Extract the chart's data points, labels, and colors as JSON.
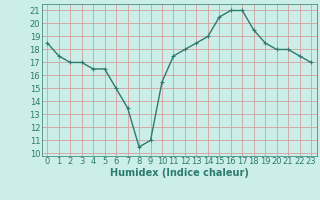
{
  "x": [
    0,
    1,
    2,
    3,
    4,
    5,
    6,
    7,
    8,
    9,
    10,
    11,
    12,
    13,
    14,
    15,
    16,
    17,
    18,
    19,
    20,
    21,
    22,
    23
  ],
  "y": [
    18.5,
    17.5,
    17.0,
    17.0,
    16.5,
    16.5,
    15.0,
    13.5,
    10.5,
    11.0,
    15.5,
    17.5,
    18.0,
    18.5,
    19.0,
    20.5,
    21.0,
    21.0,
    19.5,
    18.5,
    18.0,
    18.0,
    17.5,
    17.0
  ],
  "line_color": "#2d7a6e",
  "marker": "+",
  "marker_size": 3,
  "bg_color": "#cceee8",
  "grid_color": "#d4a0a0",
  "xlabel": "Humidex (Indice chaleur)",
  "ylabel_ticks": [
    10,
    11,
    12,
    13,
    14,
    15,
    16,
    17,
    18,
    19,
    20,
    21
  ],
  "ylim": [
    9.8,
    21.5
  ],
  "xlim": [
    -0.5,
    23.5
  ],
  "xticks": [
    0,
    1,
    2,
    3,
    4,
    5,
    6,
    7,
    8,
    9,
    10,
    11,
    12,
    13,
    14,
    15,
    16,
    17,
    18,
    19,
    20,
    21,
    22,
    23
  ],
  "tick_fontsize": 6,
  "label_fontsize": 7,
  "line_width": 1.0
}
